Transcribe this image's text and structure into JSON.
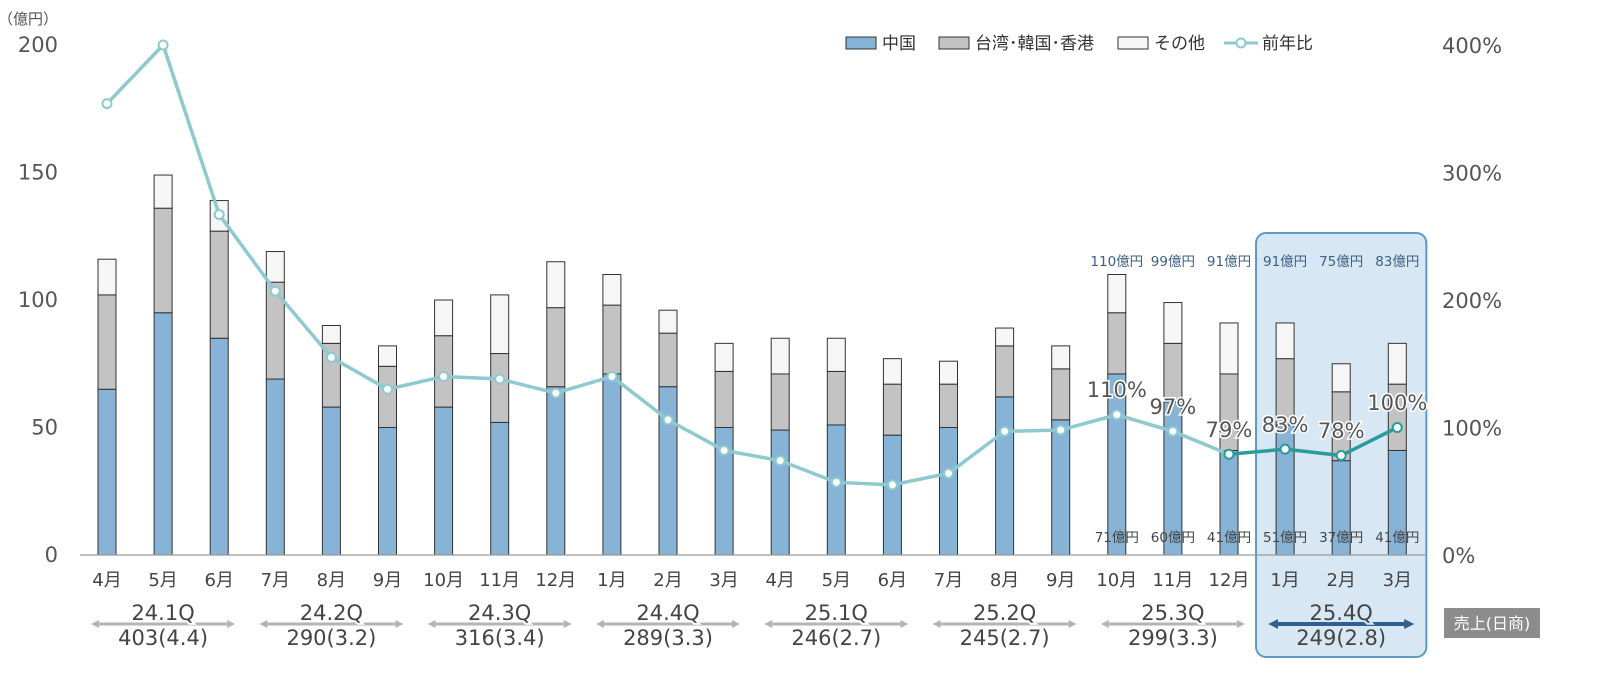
{
  "chart_data": {
    "type": "bar",
    "stacked": true,
    "unit_label": "（億円）",
    "categories": [
      "4月",
      "5月",
      "6月",
      "7月",
      "8月",
      "9月",
      "10月",
      "11月",
      "12月",
      "1月",
      "2月",
      "3月",
      "4月",
      "5月",
      "6月",
      "7月",
      "8月",
      "9月",
      "10月",
      "11月",
      "12月",
      "1月",
      "2月",
      "3月"
    ],
    "series": [
      {
        "name": "中国",
        "color": "#86b3d6",
        "values": [
          65,
          95,
          85,
          69,
          58,
          50,
          58,
          52,
          66,
          71,
          66,
          50,
          49,
          51,
          47,
          50,
          62,
          53,
          71,
          60,
          41,
          51,
          37,
          41
        ]
      },
      {
        "name": "台湾･韓国･香港",
        "color": "#c3c3c3",
        "values": [
          37,
          41,
          42,
          38,
          25,
          24,
          28,
          27,
          31,
          27,
          21,
          22,
          22,
          21,
          20,
          17,
          20,
          20,
          24,
          23,
          30,
          26,
          27,
          26
        ]
      },
      {
        "name": "その他",
        "color": "#f6f6f6",
        "values": [
          14,
          13,
          12,
          12,
          7,
          8,
          14,
          23,
          18,
          12,
          9,
          11,
          14,
          13,
          10,
          9,
          7,
          9,
          15,
          16,
          20,
          14,
          11,
          16
        ]
      }
    ],
    "line_series": {
      "name": "前年比",
      "values": [
        354,
        400,
        267,
        207,
        155,
        130,
        140,
        138,
        127,
        140,
        106,
        82,
        74,
        57,
        55,
        64,
        97,
        98,
        110,
        97,
        79,
        83,
        78,
        100
      ],
      "color": "#8ec9cf",
      "highlight_color": "#2a9a9b",
      "highlight_from": 20
    },
    "yleft": {
      "min": 0,
      "max": 200,
      "ticks": [
        "0",
        "50",
        "100",
        "150",
        "200"
      ]
    },
    "yright": {
      "min": 0,
      "max": 400,
      "ticks": [
        "0%",
        "100%",
        "200%",
        "300%",
        "400%"
      ]
    },
    "top_labels": [
      {
        "index": 18,
        "text": "110億円"
      },
      {
        "index": 19,
        "text": "99億円"
      },
      {
        "index": 20,
        "text": "91億円"
      },
      {
        "index": 21,
        "text": "91億円"
      },
      {
        "index": 22,
        "text": "75億円"
      },
      {
        "index": 23,
        "text": "83億円"
      }
    ],
    "bottom_labels": [
      {
        "index": 18,
        "text": "71億円"
      },
      {
        "index": 19,
        "text": "60億円"
      },
      {
        "index": 20,
        "text": "41億円"
      },
      {
        "index": 21,
        "text": "51億円"
      },
      {
        "index": 22,
        "text": "37億円"
      },
      {
        "index": 23,
        "text": "41億円"
      }
    ],
    "pct_labels": [
      {
        "index": 18,
        "text": "110%"
      },
      {
        "index": 19,
        "text": "97%"
      },
      {
        "index": 20,
        "text": "79%"
      },
      {
        "index": 21,
        "text": "83%"
      },
      {
        "index": 22,
        "text": "78%"
      },
      {
        "index": 23,
        "text": "100%"
      }
    ],
    "quarters": [
      {
        "q": "24.1Q",
        "sub": "403(4.4)"
      },
      {
        "q": "24.2Q",
        "sub": "290(3.2)"
      },
      {
        "q": "24.3Q",
        "sub": "316(3.4)"
      },
      {
        "q": "24.4Q",
        "sub": "289(3.3)"
      },
      {
        "q": "25.1Q",
        "sub": "246(2.7)"
      },
      {
        "q": "25.2Q",
        "sub": "245(2.7)"
      },
      {
        "q": "25.3Q",
        "sub": "299(3.3)"
      },
      {
        "q": "25.4Q",
        "sub": "249(2.8)"
      }
    ],
    "sales_tag": "売上(日商)",
    "highlight_box_from": 21,
    "legend_placement": "top-center"
  }
}
